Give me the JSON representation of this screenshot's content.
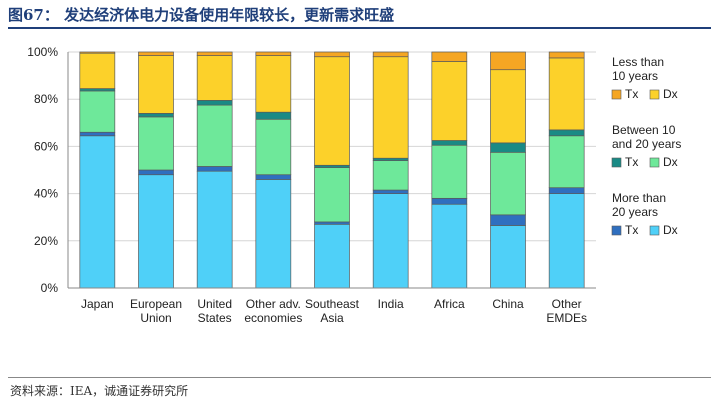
{
  "header": {
    "figure_title": "图67：   发达经济体电力设备使用年限较长，更新需求旺盛"
  },
  "footer": {
    "source": "资料来源：IEA，诚通证券研究所"
  },
  "colors": {
    "gt20_tx": "#2f6fbf",
    "gt20_dx": "#4fd0f8",
    "mid_tx": "#1a8a85",
    "mid_dx": "#6ee89a",
    "lt10_tx": "#f5a623",
    "lt10_dx": "#fcd12a"
  },
  "chart_data": {
    "type": "bar",
    "stacked": true,
    "categories": [
      [
        "Japan"
      ],
      [
        "European",
        "Union"
      ],
      [
        "United",
        "States"
      ],
      [
        "Other adv.",
        "economies"
      ],
      [
        "Southeast",
        "Asia"
      ],
      [
        "India"
      ],
      [
        "Africa"
      ],
      [
        "China"
      ],
      [
        "Other",
        "EMDEs"
      ]
    ],
    "series": [
      {
        "key": "gt20_dx",
        "color": "#4fd0f8",
        "values": [
          64.5,
          48,
          49.5,
          46,
          27,
          40,
          35.5,
          26.5,
          40
        ]
      },
      {
        "key": "gt20_tx",
        "color": "#2f6fbf",
        "values": [
          1.5,
          2,
          2,
          2,
          1,
          1.5,
          2.5,
          4.5,
          2.5
        ]
      },
      {
        "key": "mid_dx",
        "color": "#6ee89a",
        "values": [
          17.5,
          22.5,
          26,
          23.5,
          23,
          12.5,
          22.5,
          26.5,
          22
        ]
      },
      {
        "key": "mid_tx",
        "color": "#1a8a85",
        "values": [
          1,
          1.5,
          2,
          3,
          1,
          1,
          2,
          4,
          2.5
        ]
      },
      {
        "key": "lt10_dx",
        "color": "#fcd12a",
        "values": [
          15,
          24.5,
          19,
          24,
          46,
          43,
          33.5,
          31,
          30.5
        ]
      },
      {
        "key": "lt10_tx",
        "color": "#f5a623",
        "values": [
          0.5,
          1.5,
          1.5,
          1.5,
          2,
          2,
          4,
          7.5,
          2.5
        ]
      }
    ],
    "y_ticks": [
      "0%",
      "20%",
      "40%",
      "60%",
      "80%",
      "100%"
    ],
    "ylim": [
      0,
      100
    ],
    "grid": true,
    "legend_position": "right",
    "legend": [
      {
        "header": [
          "Less than",
          "10 years"
        ],
        "items": [
          {
            "label": "Tx",
            "color": "#f5a623"
          },
          {
            "label": "Dx",
            "color": "#fcd12a"
          }
        ]
      },
      {
        "header": [
          "Between 10",
          "and 20 years"
        ],
        "items": [
          {
            "label": "Tx",
            "color": "#1a8a85"
          },
          {
            "label": "Dx",
            "color": "#6ee89a"
          }
        ]
      },
      {
        "header": [
          "More than",
          "20 years"
        ],
        "items": [
          {
            "label": "Tx",
            "color": "#2f6fbf"
          },
          {
            "label": "Dx",
            "color": "#4fd0f8"
          }
        ]
      }
    ]
  }
}
